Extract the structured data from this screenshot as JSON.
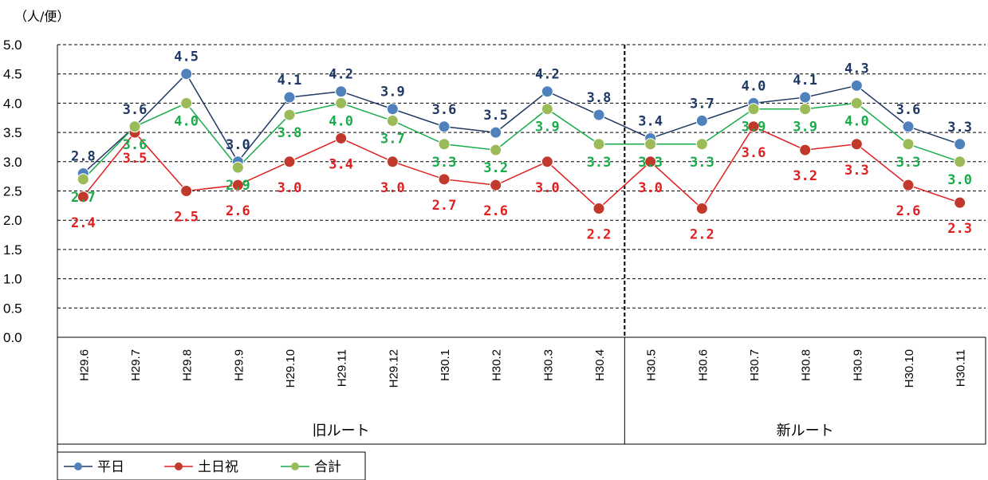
{
  "chart_data": {
    "type": "line",
    "unit_label": "（人/便）",
    "categories": [
      "H29.6",
      "H29.7",
      "H29.8",
      "H29.9",
      "H29.10",
      "H29.11",
      "H29.12",
      "H30.1",
      "H30.2",
      "H30.3",
      "H30.4",
      "H30.5",
      "H30.6",
      "H30.7",
      "H30.8",
      "H30.9",
      "H30.10",
      "H30.11"
    ],
    "groups": [
      {
        "label": "旧ルート",
        "count": 11
      },
      {
        "label": "新ルート",
        "count": 7
      }
    ],
    "ylim": [
      0,
      5
    ],
    "yticks": [
      "0.0",
      "0.5",
      "1.0",
      "1.5",
      "2.0",
      "2.5",
      "3.0",
      "3.5",
      "4.0",
      "4.5",
      "5.0"
    ],
    "grid": "horizontal-dashed",
    "divider_after_category": "H30.4",
    "legend_position": "bottom-left",
    "series": [
      {
        "name": "平日",
        "color": "#4f81bd",
        "line_color": "#1f3864",
        "label_color": "#1f3864",
        "values": [
          2.8,
          3.6,
          4.5,
          3.0,
          4.1,
          4.2,
          3.9,
          3.6,
          3.5,
          4.2,
          3.8,
          3.4,
          3.7,
          4.0,
          4.1,
          4.3,
          3.6,
          3.3
        ]
      },
      {
        "name": "土日祝",
        "color": "#c0392b",
        "line_color": "#e02020",
        "label_color": "#e02020",
        "values": [
          2.4,
          3.5,
          2.5,
          2.6,
          3.0,
          3.4,
          3.0,
          2.7,
          2.6,
          3.0,
          2.2,
          3.0,
          2.2,
          3.6,
          3.2,
          3.3,
          2.6,
          2.3
        ]
      },
      {
        "name": "合計",
        "color": "#9bbb59",
        "line_color": "#1aab4b",
        "label_color": "#1aab4b",
        "values": [
          2.7,
          3.6,
          4.0,
          2.9,
          3.8,
          4.0,
          3.7,
          3.3,
          3.2,
          3.9,
          3.3,
          3.3,
          3.3,
          3.9,
          3.9,
          4.0,
          3.3,
          3.0
        ]
      }
    ]
  }
}
